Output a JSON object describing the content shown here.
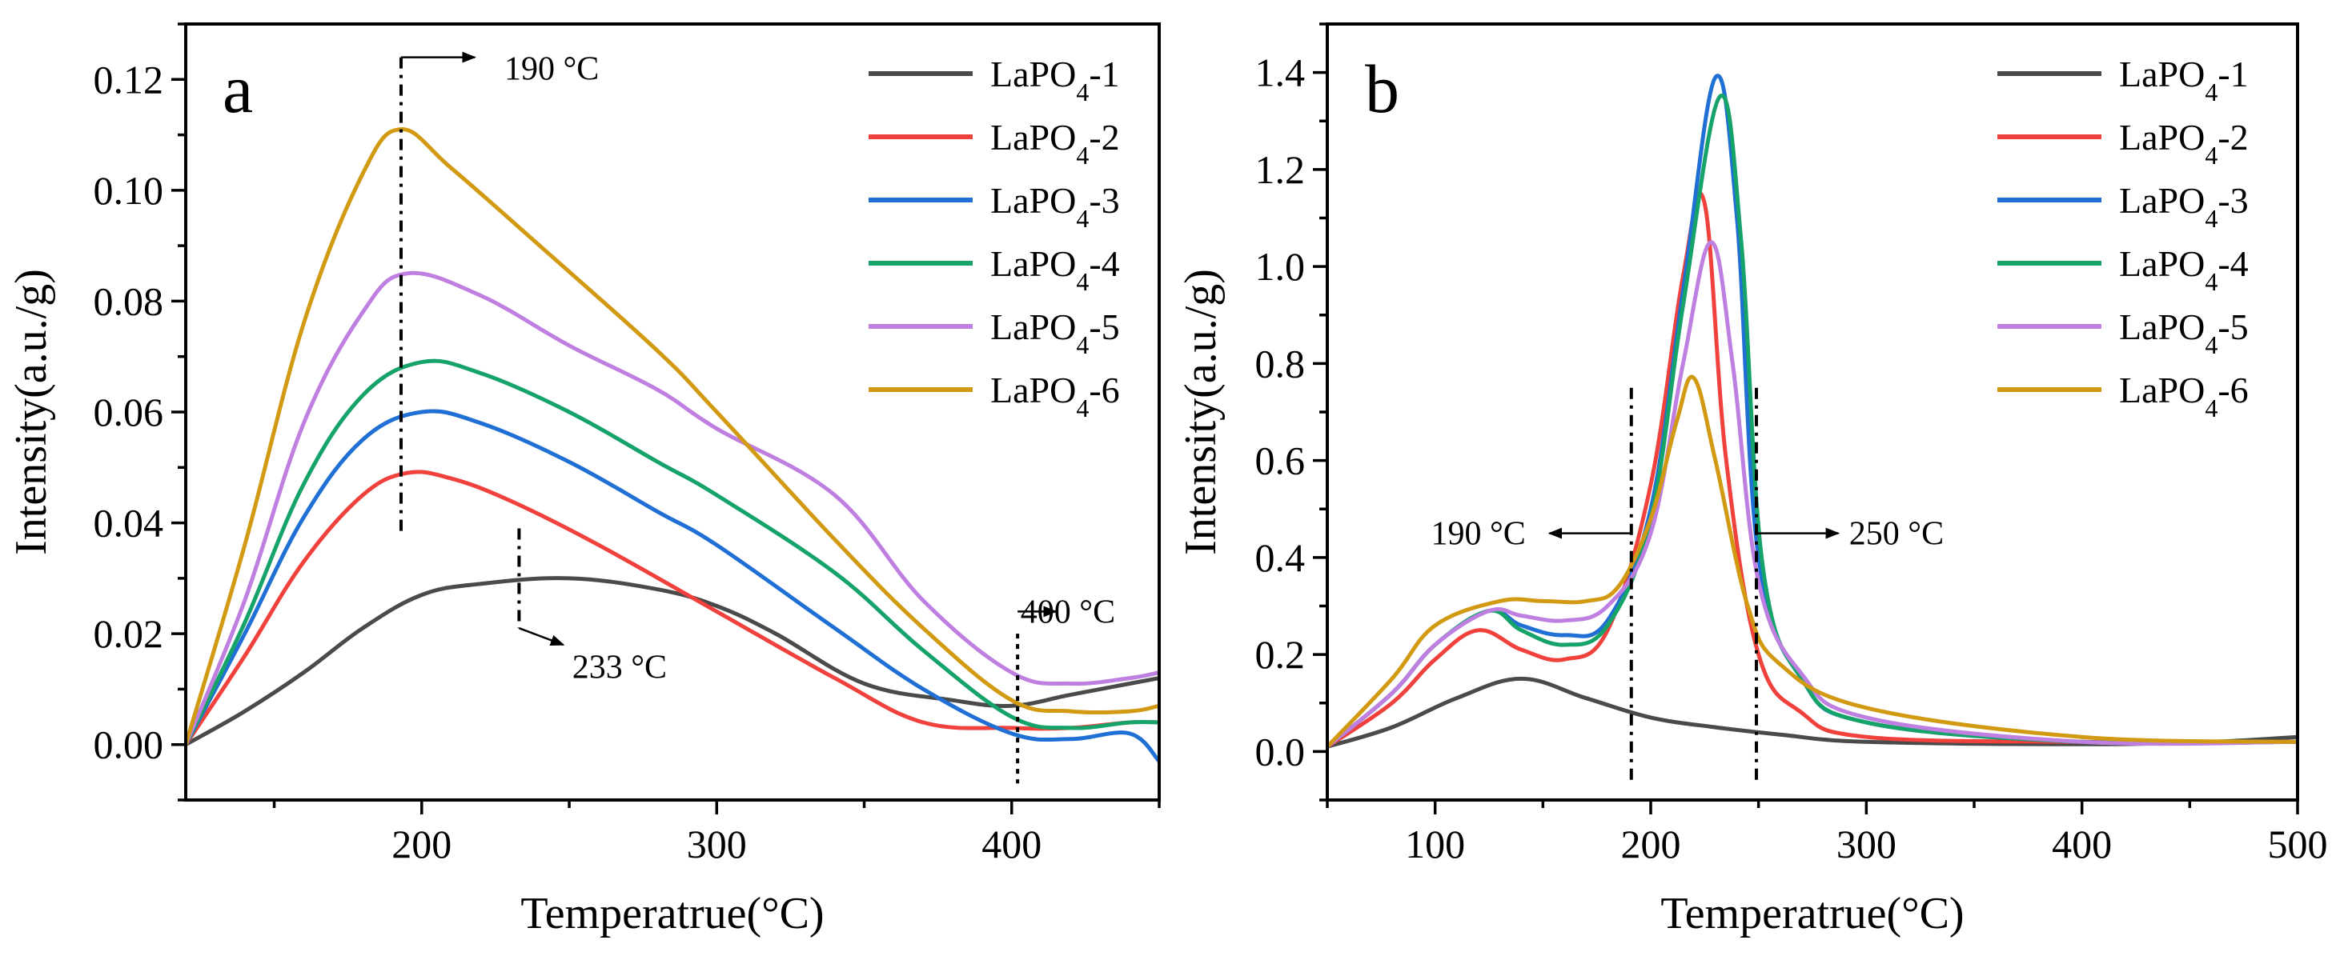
{
  "colors": {
    "LaPO4-1": "#4a4a4a",
    "LaPO4-2": "#f0413c",
    "LaPO4-3": "#1f6fd4",
    "LaPO4-4": "#16a36a",
    "LaPO4-5": "#bf7fe0",
    "LaPO4-6": "#d29a12"
  },
  "chart_data": [
    {
      "type": "line",
      "panel": "a",
      "xlabel": "Temperatrue(°C)",
      "ylabel": "Intensity(a.u./g)",
      "xlim": [
        120,
        450
      ],
      "ylim": [
        -0.01,
        0.13
      ],
      "xticks": [
        200,
        300,
        400
      ],
      "yticks": [
        0.0,
        0.02,
        0.04,
        0.06,
        0.08,
        0.1,
        0.12
      ],
      "ytick_labels": [
        "0.00",
        "0.02",
        "0.04",
        "0.06",
        "0.08",
        "0.10",
        "0.12"
      ],
      "legend": {
        "position": "top-right",
        "entries": [
          {
            "name": "LaPO4-1",
            "base": "LaPO",
            "sub": "4",
            "suffix": "-1"
          },
          {
            "name": "LaPO4-2",
            "base": "LaPO",
            "sub": "4",
            "suffix": "-2"
          },
          {
            "name": "LaPO4-3",
            "base": "LaPO",
            "sub": "4",
            "suffix": "-3"
          },
          {
            "name": "LaPO4-4",
            "base": "LaPO",
            "sub": "4",
            "suffix": "-4"
          },
          {
            "name": "LaPO4-5",
            "base": "LaPO",
            "sub": "4",
            "suffix": "-5"
          },
          {
            "name": "LaPO4-6",
            "base": "LaPO",
            "sub": "4",
            "suffix": "-6"
          }
        ]
      },
      "series": [
        {
          "name": "LaPO4-1",
          "x": [
            120,
            140,
            160,
            180,
            200,
            220,
            250,
            280,
            300,
            320,
            350,
            380,
            400,
            420,
            440,
            450
          ],
          "y": [
            0.0,
            0.006,
            0.013,
            0.021,
            0.027,
            0.029,
            0.03,
            0.028,
            0.025,
            0.02,
            0.011,
            0.008,
            0.007,
            0.009,
            0.011,
            0.012
          ]
        },
        {
          "name": "LaPO4-2",
          "x": [
            120,
            140,
            160,
            180,
            195,
            210,
            230,
            260,
            300,
            340,
            370,
            400,
            420,
            440,
            450
          ],
          "y": [
            0.0,
            0.016,
            0.033,
            0.045,
            0.049,
            0.048,
            0.044,
            0.036,
            0.024,
            0.012,
            0.004,
            0.003,
            0.003,
            0.004,
            0.004
          ]
        },
        {
          "name": "LaPO4-3",
          "x": [
            120,
            140,
            160,
            180,
            200,
            220,
            250,
            280,
            300,
            340,
            370,
            400,
            420,
            440,
            450
          ],
          "y": [
            0.0,
            0.02,
            0.041,
            0.055,
            0.06,
            0.058,
            0.051,
            0.042,
            0.036,
            0.021,
            0.01,
            0.002,
            0.001,
            0.002,
            -0.003
          ]
        },
        {
          "name": "LaPO4-4",
          "x": [
            120,
            140,
            160,
            180,
            200,
            220,
            250,
            280,
            300,
            340,
            370,
            400,
            420,
            440,
            450
          ],
          "y": [
            0.0,
            0.022,
            0.047,
            0.063,
            0.069,
            0.067,
            0.06,
            0.051,
            0.045,
            0.031,
            0.017,
            0.005,
            0.003,
            0.004,
            0.004
          ]
        },
        {
          "name": "LaPO4-5",
          "x": [
            120,
            140,
            160,
            180,
            195,
            220,
            250,
            280,
            300,
            340,
            370,
            400,
            420,
            440,
            450
          ],
          "y": [
            0.0,
            0.026,
            0.058,
            0.078,
            0.085,
            0.081,
            0.072,
            0.064,
            0.057,
            0.045,
            0.026,
            0.013,
            0.011,
            0.012,
            0.013
          ]
        },
        {
          "name": "LaPO4-6",
          "x": [
            120,
            140,
            160,
            180,
            193,
            210,
            240,
            280,
            300,
            340,
            370,
            400,
            420,
            440,
            450
          ],
          "y": [
            0.0,
            0.036,
            0.076,
            0.103,
            0.111,
            0.104,
            0.09,
            0.071,
            0.06,
            0.037,
            0.021,
            0.008,
            0.006,
            0.006,
            0.007
          ]
        }
      ],
      "annotations": [
        {
          "text": "190 °C",
          "x": 193
        },
        {
          "text": "233 °C",
          "x": 233
        },
        {
          "text": "400 °C",
          "x": 402
        }
      ],
      "panel_label": "a"
    },
    {
      "type": "line",
      "panel": "b",
      "xlabel": "Temperatrue(°C)",
      "ylabel": "Intensity(a.u./g)",
      "xlim": [
        50,
        500
      ],
      "ylim": [
        -0.1,
        1.5
      ],
      "xticks": [
        100,
        200,
        300,
        400,
        500
      ],
      "yticks": [
        0.0,
        0.2,
        0.4,
        0.6,
        0.8,
        1.0,
        1.2,
        1.4
      ],
      "ytick_labels": [
        "0.0",
        "0.2",
        "0.4",
        "0.6",
        "0.8",
        "1.0",
        "1.2",
        "1.4"
      ],
      "legend": {
        "position": "top-right",
        "entries": [
          {
            "name": "LaPO4-1",
            "base": "LaPO",
            "sub": "4",
            "suffix": "-1"
          },
          {
            "name": "LaPO4-2",
            "base": "LaPO",
            "sub": "4",
            "suffix": "-2"
          },
          {
            "name": "LaPO4-3",
            "base": "LaPO",
            "sub": "4",
            "suffix": "-3"
          },
          {
            "name": "LaPO4-4",
            "base": "LaPO",
            "sub": "4",
            "suffix": "-4"
          },
          {
            "name": "LaPO4-5",
            "base": "LaPO",
            "sub": "4",
            "suffix": "-5"
          },
          {
            "name": "LaPO4-6",
            "base": "LaPO",
            "sub": "4",
            "suffix": "-6"
          }
        ]
      },
      "series": [
        {
          "name": "LaPO4-1",
          "x": [
            50,
            80,
            110,
            140,
            170,
            200,
            230,
            260,
            300,
            400,
            460,
            500
          ],
          "y": [
            0.01,
            0.05,
            0.11,
            0.15,
            0.11,
            0.07,
            0.05,
            0.035,
            0.02,
            0.015,
            0.02,
            0.03
          ]
        },
        {
          "name": "LaPO4-2",
          "x": [
            50,
            80,
            100,
            120,
            140,
            160,
            180,
            200,
            215,
            225,
            235,
            250,
            270,
            300,
            400,
            500
          ],
          "y": [
            0.01,
            0.1,
            0.19,
            0.25,
            0.21,
            0.19,
            0.25,
            0.55,
            0.98,
            1.13,
            0.6,
            0.2,
            0.08,
            0.03,
            0.02,
            0.02
          ]
        },
        {
          "name": "LaPO4-3",
          "x": [
            50,
            80,
            100,
            125,
            140,
            160,
            180,
            200,
            215,
            230,
            240,
            250,
            270,
            300,
            400,
            500
          ],
          "y": [
            0.01,
            0.12,
            0.22,
            0.29,
            0.26,
            0.24,
            0.27,
            0.5,
            0.95,
            1.39,
            1.1,
            0.4,
            0.15,
            0.06,
            0.02,
            0.02
          ]
        },
        {
          "name": "LaPO4-4",
          "x": [
            50,
            80,
            100,
            125,
            140,
            160,
            180,
            200,
            215,
            232,
            242,
            252,
            270,
            300,
            400,
            500
          ],
          "y": [
            0.01,
            0.12,
            0.22,
            0.29,
            0.25,
            0.22,
            0.26,
            0.48,
            0.92,
            1.35,
            1.05,
            0.38,
            0.15,
            0.06,
            0.02,
            0.02
          ]
        },
        {
          "name": "LaPO4-5",
          "x": [
            50,
            80,
            100,
            125,
            140,
            160,
            180,
            200,
            215,
            228,
            238,
            250,
            270,
            300,
            400,
            500
          ],
          "y": [
            0.01,
            0.12,
            0.22,
            0.29,
            0.28,
            0.27,
            0.3,
            0.45,
            0.8,
            1.05,
            0.8,
            0.35,
            0.16,
            0.07,
            0.02,
            0.02
          ]
        },
        {
          "name": "LaPO4-6",
          "x": [
            50,
            80,
            100,
            130,
            150,
            170,
            185,
            200,
            212,
            220,
            230,
            245,
            260,
            300,
            400,
            500
          ],
          "y": [
            0.01,
            0.15,
            0.26,
            0.31,
            0.31,
            0.31,
            0.34,
            0.48,
            0.68,
            0.77,
            0.6,
            0.3,
            0.18,
            0.09,
            0.03,
            0.02
          ]
        }
      ],
      "annotations": [
        {
          "text": "190 °C",
          "x": 191
        },
        {
          "text": "250 °C",
          "x": 249
        }
      ],
      "panel_label": "b"
    }
  ]
}
